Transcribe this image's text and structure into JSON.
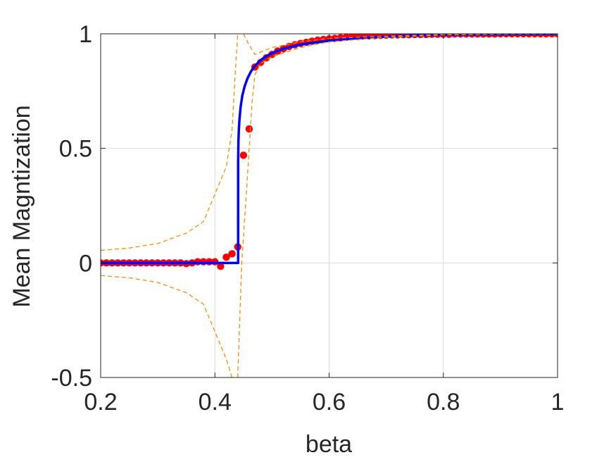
{
  "chart_data": {
    "type": "line",
    "title": "",
    "xlabel": "beta",
    "ylabel": "Mean Magntization",
    "xlim": [
      0.2,
      1
    ],
    "ylim": [
      -0.5,
      1
    ],
    "xticks": [
      0.2,
      0.4,
      0.6,
      0.8,
      1
    ],
    "yticks": [
      -0.5,
      0,
      0.5,
      1
    ],
    "xtick_labels": [
      "0.2",
      "0.4",
      "0.6",
      "0.8",
      "1"
    ],
    "ytick_labels": [
      "-0.5",
      "0",
      "0.5",
      "1"
    ],
    "grid": true,
    "legend": "none",
    "colors": {
      "simulation": "#ff0000",
      "theory": "#0000ff",
      "error_band": "#ff8c00",
      "grid": "#dcdcdc",
      "axes": "#262626"
    },
    "series": [
      {
        "kind": "scatter",
        "x": [
          0.2,
          0.21,
          0.22,
          0.23,
          0.24,
          0.25,
          0.26,
          0.27,
          0.28,
          0.29,
          0.3,
          0.31,
          0.32,
          0.33,
          0.34,
          0.35,
          0.36,
          0.37,
          0.38,
          0.39,
          0.4,
          0.41,
          0.42,
          0.43,
          0.44,
          0.45,
          0.46,
          0.47,
          0.48,
          0.49,
          0.5,
          0.51,
          0.52,
          0.53,
          0.54,
          0.55,
          0.56,
          0.57,
          0.58,
          0.59,
          0.6,
          0.61,
          0.62,
          0.63,
          0.64,
          0.65,
          0.66,
          0.67,
          0.68,
          0.69,
          0.7,
          0.71,
          0.72,
          0.73,
          0.74,
          0.75,
          0.76,
          0.77,
          0.78,
          0.79,
          0.8,
          0.81,
          0.82,
          0.83,
          0.84,
          0.85,
          0.86,
          0.87,
          0.88,
          0.89,
          0.9,
          0.91,
          0.92,
          0.93,
          0.94,
          0.95,
          0.96,
          0.97,
          0.98,
          0.99,
          1.0
        ],
        "y": [
          0,
          0,
          0,
          0,
          0,
          0,
          0,
          0,
          0,
          0,
          0,
          0,
          0,
          0,
          0,
          -0.003,
          0,
          0.005,
          0.005,
          0.005,
          0.005,
          -0.015,
          0.025,
          0.04,
          0.07,
          0.47,
          0.585,
          0.855,
          0.875,
          0.895,
          0.91,
          0.925,
          0.935,
          0.945,
          0.952,
          0.958,
          0.963,
          0.968,
          0.972,
          0.975,
          0.978,
          0.98,
          0.983,
          0.985,
          0.987,
          0.988,
          0.99,
          0.991,
          0.992,
          0.993,
          0.994,
          0.995,
          0.995,
          0.996,
          0.996,
          0.997,
          0.997,
          0.997,
          0.998,
          0.998,
          0.998,
          0.998,
          0.999,
          0.999,
          0.999,
          0.999,
          0.999,
          0.999,
          0.999,
          0.999,
          1,
          1,
          1,
          1,
          1,
          1,
          1,
          1,
          1,
          1,
          1
        ]
      },
      {
        "kind": "line",
        "style": "solid",
        "x": [
          0.2,
          0.4407,
          0.4407,
          0.4412,
          0.442,
          0.443,
          0.445,
          0.448,
          0.452,
          0.457,
          0.463,
          0.47,
          0.48,
          0.49,
          0.5,
          0.52,
          0.55,
          0.6,
          0.65,
          0.7,
          0.75,
          0.8,
          0.9,
          1.0
        ],
        "y": [
          0,
          0,
          0.44,
          0.53,
          0.585,
          0.625,
          0.68,
          0.73,
          0.77,
          0.805,
          0.835,
          0.86,
          0.885,
          0.902,
          0.916,
          0.935,
          0.953,
          0.97,
          0.981,
          0.988,
          0.993,
          0.996,
          0.998,
          1
        ]
      },
      {
        "kind": "line",
        "style": "dashed",
        "x": [
          0.2,
          0.25,
          0.3,
          0.35,
          0.38,
          0.4,
          0.42,
          0.43,
          0.435,
          0.44
        ],
        "y": [
          0.055,
          0.065,
          0.085,
          0.13,
          0.18,
          0.3,
          0.42,
          0.58,
          0.8,
          1.0
        ]
      },
      {
        "kind": "line",
        "style": "dashed",
        "x": [
          0.2,
          0.25,
          0.3,
          0.35,
          0.38,
          0.4,
          0.42,
          0.43,
          0.435
        ],
        "y": [
          -0.055,
          -0.065,
          -0.085,
          -0.13,
          -0.18,
          -0.3,
          -0.42,
          -0.5,
          -0.5
        ]
      },
      {
        "kind": "line",
        "style": "dashed",
        "x": [
          0.44,
          0.447,
          0.455,
          0.46,
          0.465,
          0.47,
          0.48,
          0.5,
          0.55,
          0.6,
          0.7,
          0.8,
          0.9,
          1.0
        ],
        "y": [
          -0.5,
          0.0,
          0.3,
          0.5,
          0.7,
          0.82,
          0.87,
          0.9,
          0.94,
          0.965,
          0.985,
          0.995,
          0.998,
          1.0
        ]
      },
      {
        "kind": "line",
        "style": "dashed",
        "x": [
          0.45,
          0.458,
          0.465,
          0.47,
          0.48,
          0.5,
          0.55,
          0.6,
          0.7,
          0.8,
          0.9,
          1.0
        ],
        "y": [
          1.0,
          0.96,
          0.93,
          0.91,
          0.92,
          0.94,
          0.965,
          0.98,
          0.99,
          0.997,
          0.999,
          1.0
        ]
      }
    ]
  }
}
